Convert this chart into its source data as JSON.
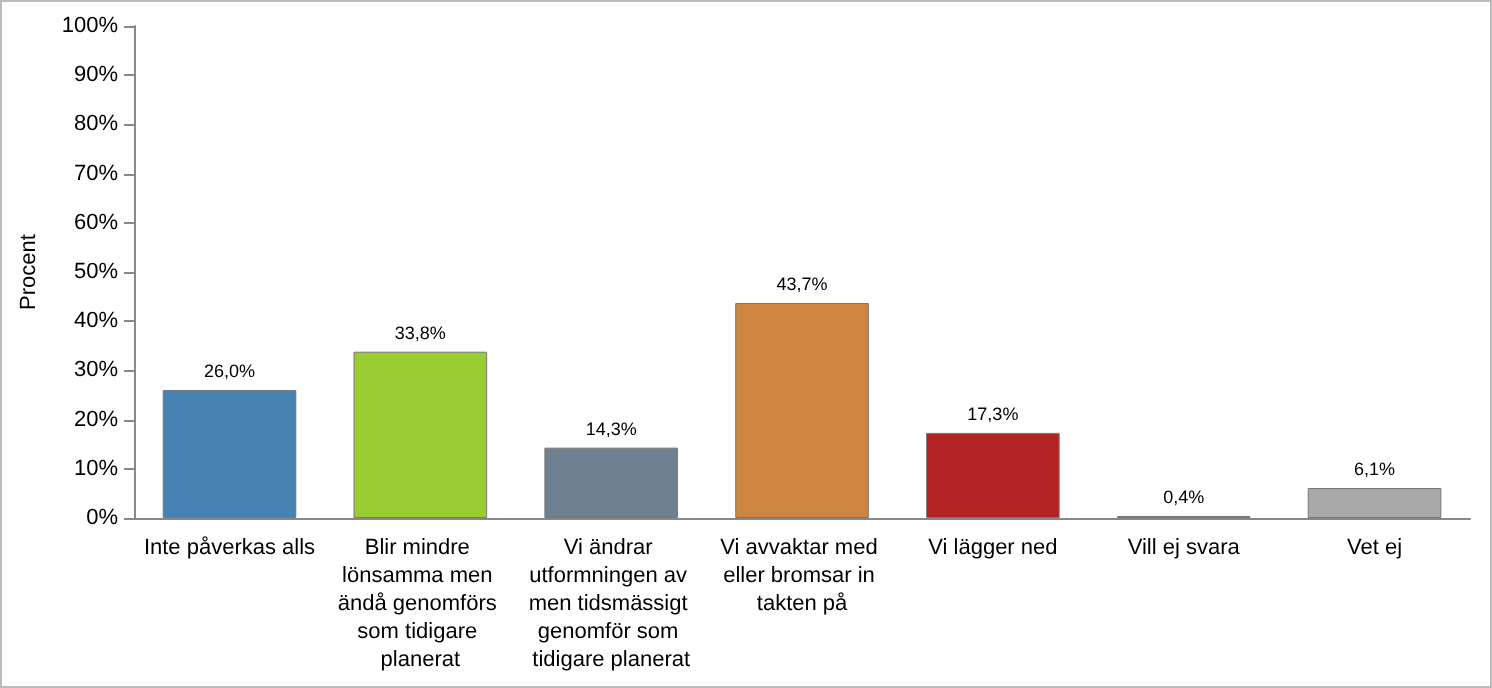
{
  "chart_data": {
    "type": "bar",
    "ylabel": "Procent",
    "categories": [
      "Inte påverkas alls",
      "Blir mindre lönsamma men ändå genomförs som tidigare planerat",
      "Vi ändrar utformningen av men tidsmässigt genomför som tidigare planerat",
      "Vi avvaktar med eller bromsar in takten på",
      "Vi lägger ned",
      "Vill ej svara",
      "Vet ej"
    ],
    "values": [
      26.0,
      33.8,
      14.3,
      43.7,
      17.3,
      0.4,
      6.1
    ],
    "value_labels": [
      "26,0%",
      "33,8%",
      "14,3%",
      "43,7%",
      "17,3%",
      "0,4%",
      "6,1%"
    ],
    "colors": [
      "#4682b4",
      "#9acd32",
      "#708090",
      "#cd853f",
      "#b22222",
      "#ffa500",
      "#a9a9a9"
    ],
    "ylim": [
      0,
      100
    ],
    "yticks": [
      {
        "value": 0,
        "label": "0%"
      },
      {
        "value": 10,
        "label": "10%"
      },
      {
        "value": 20,
        "label": "20%"
      },
      {
        "value": 30,
        "label": "30%"
      },
      {
        "value": 40,
        "label": "40%"
      },
      {
        "value": 50,
        "label": "50%"
      },
      {
        "value": 60,
        "label": "60%"
      },
      {
        "value": 70,
        "label": "70%"
      },
      {
        "value": 80,
        "label": "80%"
      },
      {
        "value": 90,
        "label": "90%"
      },
      {
        "value": 100,
        "label": "100%"
      }
    ],
    "grid": false
  }
}
